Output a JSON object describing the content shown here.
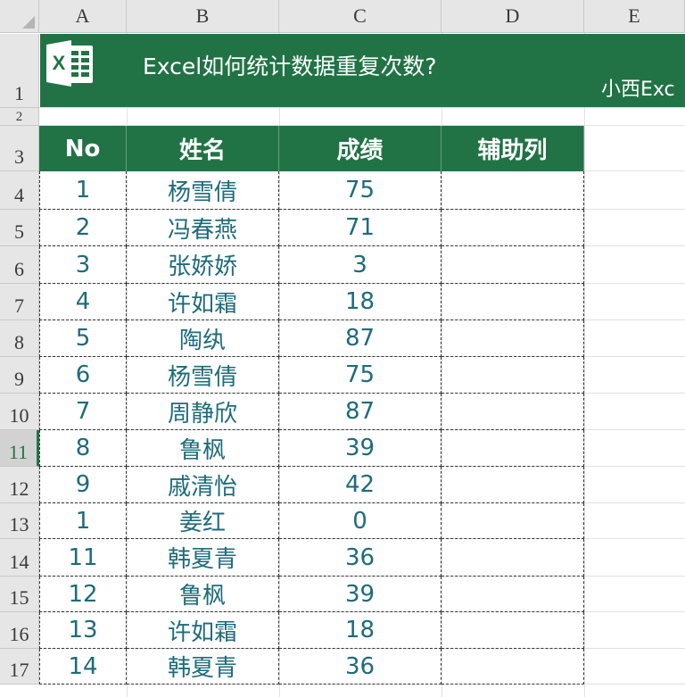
{
  "columns": [
    "A",
    "B",
    "C",
    "D",
    "E"
  ],
  "row_numbers": [
    "1",
    "2",
    "3",
    "4",
    "5",
    "6",
    "7",
    "8",
    "9",
    "10",
    "11",
    "12",
    "13",
    "14",
    "15",
    "16",
    "17"
  ],
  "selected_row": "11",
  "banner": {
    "title": "Excel如何统计数据重复次数?",
    "right_text": "小西Exc",
    "logo_letter": "X"
  },
  "table": {
    "headers": [
      "No",
      "姓名",
      "成绩",
      "辅助列"
    ],
    "rows": [
      [
        "1",
        "杨雪倩",
        "75",
        ""
      ],
      [
        "2",
        "冯春燕",
        "71",
        ""
      ],
      [
        "3",
        "张娇娇",
        "3",
        ""
      ],
      [
        "4",
        "许如霜",
        "18",
        ""
      ],
      [
        "5",
        "陶纨",
        "87",
        ""
      ],
      [
        "6",
        "杨雪倩",
        "75",
        ""
      ],
      [
        "7",
        "周静欣",
        "87",
        ""
      ],
      [
        "8",
        "鲁枫",
        "39",
        ""
      ],
      [
        "9",
        "戚清怡",
        "42",
        ""
      ],
      [
        "1",
        "姜红",
        "0",
        ""
      ],
      [
        "11",
        "韩夏青",
        "36",
        ""
      ],
      [
        "12",
        "鲁枫",
        "39",
        ""
      ],
      [
        "13",
        "许如霜",
        "18",
        ""
      ],
      [
        "14",
        "韩夏青",
        "36",
        ""
      ]
    ]
  },
  "colors": {
    "excel_green": "#217346",
    "cell_text": "#1e6b7a",
    "header_bg": "#e6e6e6"
  }
}
